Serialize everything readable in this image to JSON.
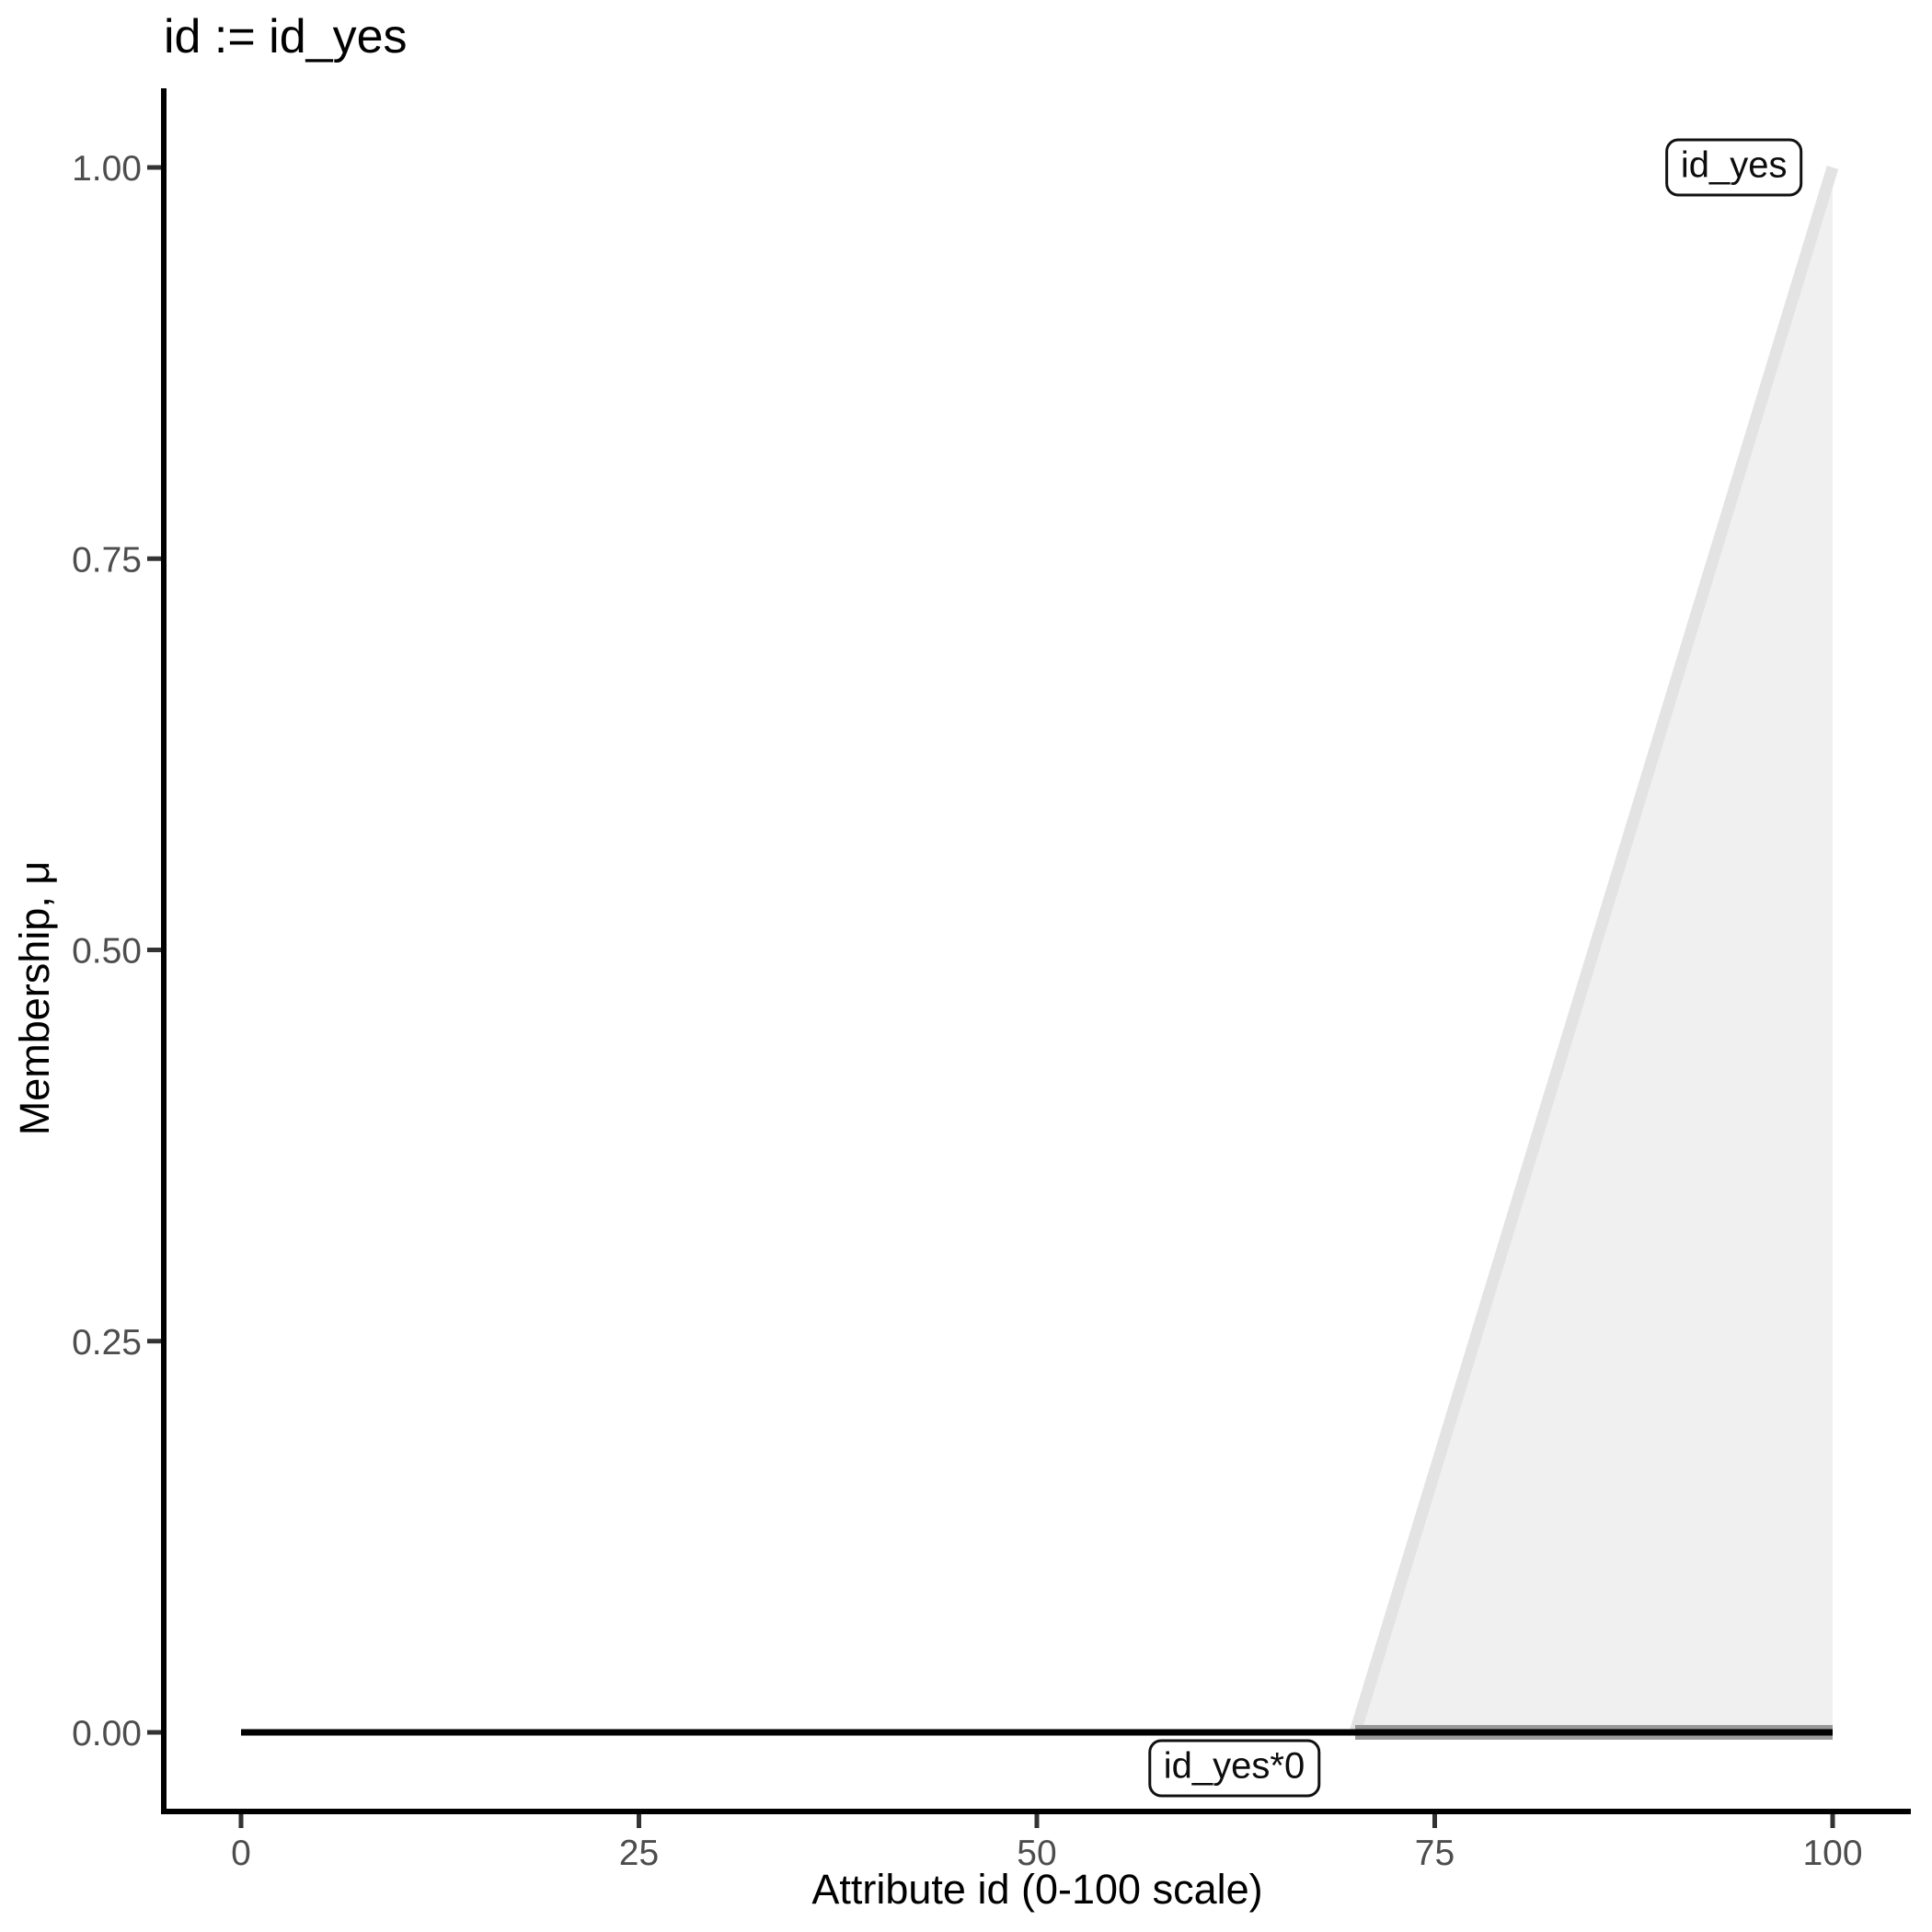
{
  "title": "id := id_yes",
  "chart_data": {
    "type": "area",
    "title": "id := id_yes",
    "xlabel": "Attribute id (0-100 scale)",
    "ylabel": "Membership, μ",
    "xlim": [
      0,
      100
    ],
    "ylim": [
      0,
      1
    ],
    "grid": "off",
    "legend": "inline-boxed-labels",
    "x_ticks": {
      "values": [
        0,
        25,
        50,
        75,
        100
      ],
      "labels": [
        "0",
        "25",
        "50",
        "75",
        "100"
      ]
    },
    "y_ticks": {
      "values": [
        0,
        0.25,
        0.5,
        0.75,
        1
      ],
      "labels": [
        "0.00",
        "0.25",
        "0.50",
        "0.75",
        "1.00"
      ]
    },
    "series": [
      {
        "name": "id_yes",
        "kind": "fuzzy-set-area",
        "description": "triangular ramp membership function rising from x=70 to peak 1.0 at x=100",
        "polygon": [
          [
            70,
            0
          ],
          [
            100,
            1
          ],
          [
            100,
            0
          ]
        ],
        "outline": [
          [
            70,
            0
          ],
          [
            100,
            1
          ]
        ],
        "support_base": [
          [
            70,
            0
          ],
          [
            100,
            0
          ]
        ],
        "fill": "#f0f0f0",
        "outline_color": "#e3e3e3",
        "outline_width": 13,
        "base_color": "#999999",
        "base_width": 16
      },
      {
        "name": "id_yes*0",
        "kind": "line",
        "description": "membership function scaled by 0: flat at 0 across full domain",
        "points": [
          [
            0,
            0
          ],
          [
            100,
            0
          ]
        ],
        "color": "#000000",
        "width": 7
      }
    ],
    "annotations": [
      {
        "text": "id_yes",
        "x": 93.8,
        "y": 1.0
      },
      {
        "text": "id_yes*0",
        "x": 62.4,
        "y": -0.023
      }
    ]
  },
  "colors": {
    "background": "#ffffff",
    "axis_line": "#000000",
    "tick_mark": "#333333",
    "tick_label": "#4d4d4d",
    "set_fill": "#f0f0f0",
    "set_outline": "#e3e3e3",
    "set_base": "#999999",
    "scaled_set_line": "#000000"
  }
}
